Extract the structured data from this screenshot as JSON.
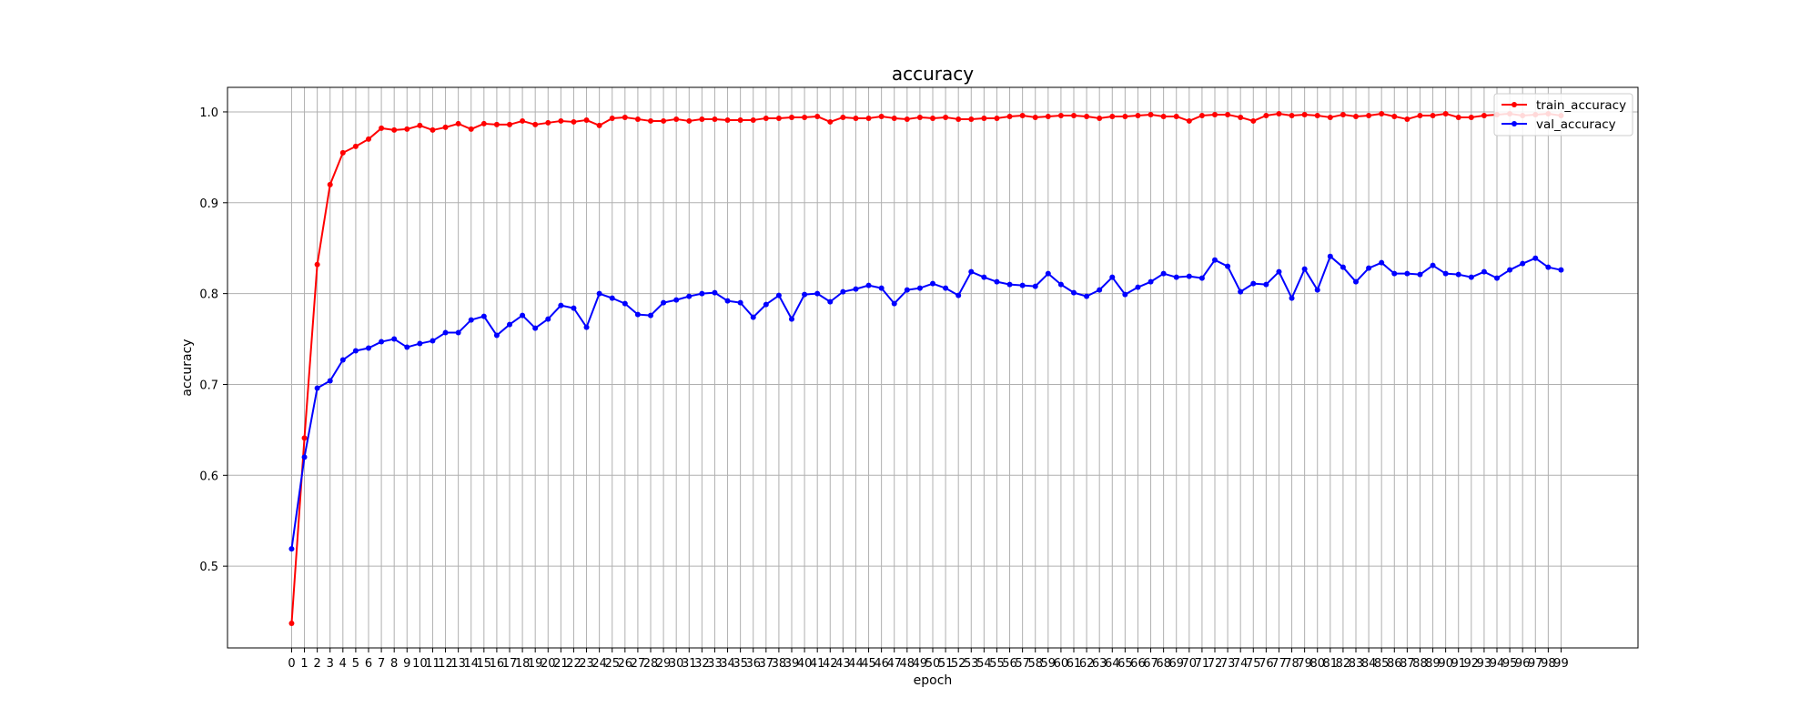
{
  "chart_data": {
    "type": "line",
    "title": "accuracy",
    "xlabel": "epoch",
    "ylabel": "accuracy",
    "xlim": [
      -5,
      105
    ],
    "ylim": [
      0.41,
      1.027
    ],
    "yticks": [
      0.5,
      0.6,
      0.7,
      0.8,
      0.9,
      1.0
    ],
    "ytick_labels": [
      "0.5",
      "0.6",
      "0.7",
      "0.8",
      "0.9",
      "1.0"
    ],
    "grid": true,
    "legend_position": "top-right",
    "x": [
      0,
      1,
      2,
      3,
      4,
      5,
      6,
      7,
      8,
      9,
      10,
      11,
      12,
      13,
      14,
      15,
      16,
      17,
      18,
      19,
      20,
      21,
      22,
      23,
      24,
      25,
      26,
      27,
      28,
      29,
      30,
      31,
      32,
      33,
      34,
      35,
      36,
      37,
      38,
      39,
      40,
      41,
      42,
      43,
      44,
      45,
      46,
      47,
      48,
      49,
      50,
      51,
      52,
      53,
      54,
      55,
      56,
      57,
      58,
      59,
      60,
      61,
      62,
      63,
      64,
      65,
      66,
      67,
      68,
      69,
      70,
      71,
      72,
      73,
      74,
      75,
      76,
      77,
      78,
      79,
      80,
      81,
      82,
      83,
      84,
      85,
      86,
      87,
      88,
      89,
      90,
      91,
      92,
      93,
      94,
      95,
      96,
      97,
      98,
      99
    ],
    "series": [
      {
        "name": "train_accuracy",
        "color": "#ff0000",
        "values": [
          0.437,
          0.641,
          0.832,
          0.92,
          0.955,
          0.962,
          0.97,
          0.982,
          0.98,
          0.981,
          0.985,
          0.98,
          0.983,
          0.987,
          0.981,
          0.987,
          0.986,
          0.986,
          0.99,
          0.986,
          0.988,
          0.99,
          0.989,
          0.991,
          0.985,
          0.993,
          0.994,
          0.992,
          0.99,
          0.99,
          0.992,
          0.99,
          0.992,
          0.992,
          0.991,
          0.991,
          0.991,
          0.993,
          0.993,
          0.994,
          0.994,
          0.995,
          0.989,
          0.994,
          0.993,
          0.993,
          0.995,
          0.993,
          0.992,
          0.994,
          0.993,
          0.994,
          0.992,
          0.992,
          0.993,
          0.993,
          0.995,
          0.996,
          0.994,
          0.995,
          0.996,
          0.996,
          0.995,
          0.993,
          0.995,
          0.995,
          0.996,
          0.997,
          0.995,
          0.995,
          0.99,
          0.996,
          0.997,
          0.997,
          0.994,
          0.99,
          0.996,
          0.998,
          0.996,
          0.997,
          0.996,
          0.994,
          0.997,
          0.995,
          0.996,
          0.998,
          0.995,
          0.992,
          0.996,
          0.996,
          0.998,
          0.994,
          0.994,
          0.996,
          0.997,
          0.998,
          0.996,
          0.997,
          0.998,
          0.996
        ]
      },
      {
        "name": "val_accuracy",
        "color": "#0000ff",
        "values": [
          0.519,
          0.62,
          0.696,
          0.704,
          0.727,
          0.737,
          0.74,
          0.747,
          0.75,
          0.741,
          0.745,
          0.748,
          0.757,
          0.757,
          0.771,
          0.775,
          0.754,
          0.766,
          0.776,
          0.762,
          0.772,
          0.787,
          0.784,
          0.763,
          0.8,
          0.795,
          0.789,
          0.777,
          0.776,
          0.79,
          0.793,
          0.797,
          0.8,
          0.801,
          0.792,
          0.79,
          0.774,
          0.788,
          0.798,
          0.772,
          0.799,
          0.8,
          0.791,
          0.802,
          0.805,
          0.809,
          0.806,
          0.789,
          0.804,
          0.806,
          0.811,
          0.806,
          0.798,
          0.824,
          0.818,
          0.813,
          0.81,
          0.809,
          0.808,
          0.822,
          0.81,
          0.801,
          0.797,
          0.804,
          0.818,
          0.799,
          0.807,
          0.813,
          0.822,
          0.818,
          0.819,
          0.817,
          0.837,
          0.83,
          0.802,
          0.811,
          0.81,
          0.824,
          0.795,
          0.827,
          0.804,
          0.841,
          0.829,
          0.813,
          0.828,
          0.834,
          0.822,
          0.822,
          0.821,
          0.831,
          0.822,
          0.821,
          0.818,
          0.824,
          0.817,
          0.826,
          0.833,
          0.839,
          0.829,
          0.826
        ]
      }
    ]
  }
}
